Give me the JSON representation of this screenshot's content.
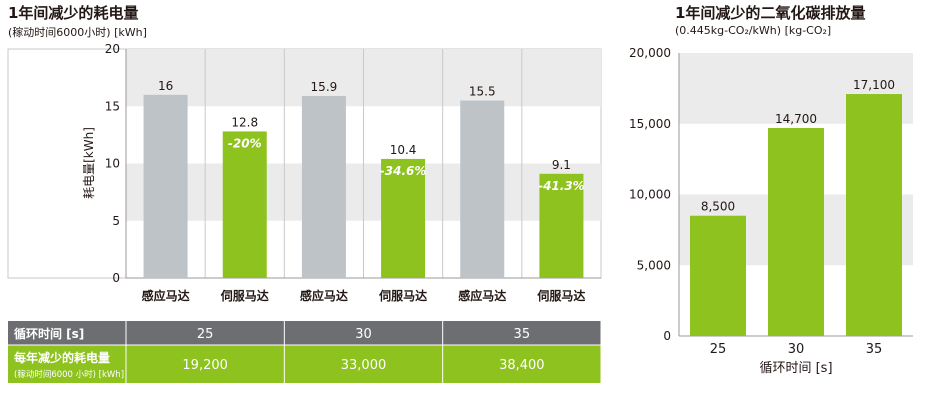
{
  "chart_data": [
    {
      "type": "bar",
      "title": "1年间减少的耗电量",
      "subtitle": "(稼动时间6000小时) [kWh]",
      "ylabel": "耗电量[kWh]",
      "ylim": [
        0,
        20
      ],
      "yticks": [
        0,
        5,
        10,
        15,
        20
      ],
      "bars": [
        {
          "category": "感应马达",
          "value": 16,
          "label": "16",
          "type": "induction",
          "reduction": ""
        },
        {
          "category": "伺服马达",
          "value": 12.8,
          "label": "12.8",
          "type": "servo",
          "reduction": "-20%"
        },
        {
          "category": "感应马达",
          "value": 15.9,
          "label": "15.9",
          "type": "induction",
          "reduction": ""
        },
        {
          "category": "伺服马达",
          "value": 10.4,
          "label": "10.4",
          "type": "servo",
          "reduction": "-34.6%"
        },
        {
          "category": "感应马达",
          "value": 15.5,
          "label": "15.5",
          "type": "induction",
          "reduction": ""
        },
        {
          "category": "伺服马达",
          "value": 9.1,
          "label": "9.1",
          "type": "servo",
          "reduction": "-41.3%"
        }
      ],
      "table": {
        "cycle_header": "循环时间 [s]",
        "cycles": [
          "25",
          "30",
          "35"
        ],
        "saving_header": "每年减少的耗电量",
        "saving_subheader": "(稼动时间6000 小时) [kWh]",
        "savings": [
          "19,200",
          "33,000",
          "38,400"
        ]
      },
      "grid": true,
      "colors": {
        "induction": "#bdc3c7",
        "servo": "#8dc21f",
        "header_bg": "#6d6e71",
        "row_bg": "#8dc21f"
      }
    },
    {
      "type": "bar",
      "title": "1年间减少的二氧化碳排放量",
      "subtitle": "(0.445kg-CO₂/kWh) [kg-CO₂]",
      "xlabel": "循环时间 [s]",
      "ylim": [
        0,
        20000
      ],
      "yticks": [
        "0",
        "5,000",
        "10,000",
        "15,000",
        "20,000"
      ],
      "ytick_values": [
        0,
        5000,
        10000,
        15000,
        20000
      ],
      "categories": [
        "25",
        "30",
        "35"
      ],
      "values": [
        8500,
        14700,
        17100
      ],
      "labels": [
        "8,500",
        "14,700",
        "17,100"
      ],
      "grid": true,
      "colors": {
        "bar": "#8dc21f"
      }
    }
  ]
}
